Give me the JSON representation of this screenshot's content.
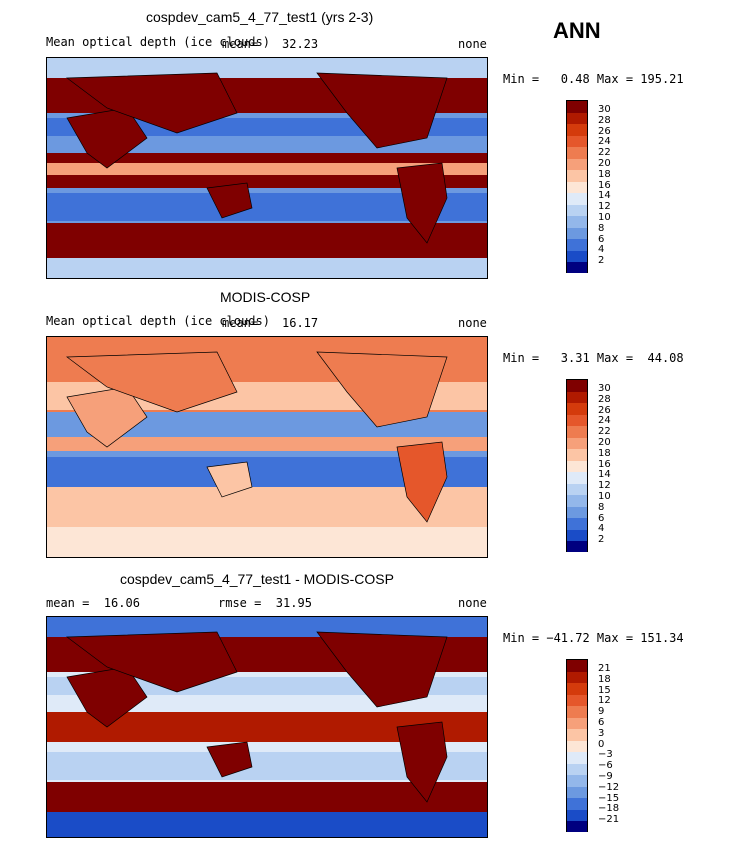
{
  "season": "ANN",
  "panels": [
    {
      "title": "cospdev_cam5_4_77_test1 (yrs 2-3)",
      "variable": "Mean optical depth (ice clouds)",
      "mean_label": "mean=",
      "mean_value": "32.23",
      "units": "none",
      "minmax": "Min =   0.48 Max = 195.21",
      "legend_ticks": [
        "30",
        "28",
        "26",
        "24",
        "22",
        "20",
        "18",
        "16",
        "14",
        "12",
        "10",
        "8",
        "6",
        "4",
        "2"
      ],
      "field_scale": "high"
    },
    {
      "title": "MODIS-COSP",
      "variable": "Mean optical depth (ice clouds)",
      "mean_label": "mean=",
      "mean_value": "16.17",
      "units": "none",
      "minmax": "Min =   3.31 Max =  44.08",
      "legend_ticks": [
        "30",
        "28",
        "26",
        "24",
        "22",
        "20",
        "18",
        "16",
        "14",
        "12",
        "10",
        "8",
        "6",
        "4",
        "2"
      ],
      "field_scale": "medium"
    },
    {
      "title": "cospdev_cam5_4_77_test1 - MODIS-COSP",
      "mean_text": "mean =  16.06",
      "rmse_text": "rmse =  31.95",
      "units": "none",
      "minmax": "Min = −41.72 Max = 151.34",
      "legend_ticks": [
        "21",
        "18",
        "15",
        "12",
        "9",
        "6",
        "3",
        "0",
        "−3",
        "−6",
        "−9",
        "−12",
        "−15",
        "−18",
        "−21"
      ],
      "field_scale": "diff"
    }
  ],
  "colors": {
    "scale": [
      "#7f0000",
      "#b01a00",
      "#d43b0c",
      "#e5572b",
      "#ee7c50",
      "#f6a07a",
      "#fcc5a5",
      "#fde6d6",
      "#dfeaf8",
      "#b9d2f2",
      "#93b7ea",
      "#6c99e0",
      "#3f72d8",
      "#1a4cc7",
      "#0f24a6",
      "#000080"
    ]
  },
  "chart_data": [
    {
      "type": "heatmap",
      "title": "cospdev_cam5_4_77_test1 (yrs 2-3)",
      "variable": "Mean optical depth (ice clouds)",
      "mean": 32.23,
      "min": 0.48,
      "max": 195.21,
      "units": "none",
      "colorbar_levels": [
        2,
        4,
        6,
        8,
        10,
        12,
        14,
        16,
        18,
        20,
        22,
        24,
        26,
        28,
        30
      ]
    },
    {
      "type": "heatmap",
      "title": "MODIS-COSP",
      "variable": "Mean optical depth (ice clouds)",
      "mean": 16.17,
      "min": 3.31,
      "max": 44.08,
      "units": "none",
      "colorbar_levels": [
        2,
        4,
        6,
        8,
        10,
        12,
        14,
        16,
        18,
        20,
        22,
        24,
        26,
        28,
        30
      ]
    },
    {
      "type": "heatmap",
      "title": "cospdev_cam5_4_77_test1 - MODIS-COSP",
      "mean": 16.06,
      "rmse": 31.95,
      "min": -41.72,
      "max": 151.34,
      "units": "none",
      "colorbar_levels": [
        -21,
        -18,
        -15,
        -12,
        -9,
        -6,
        -3,
        0,
        3,
        6,
        9,
        12,
        15,
        18,
        21
      ]
    }
  ]
}
